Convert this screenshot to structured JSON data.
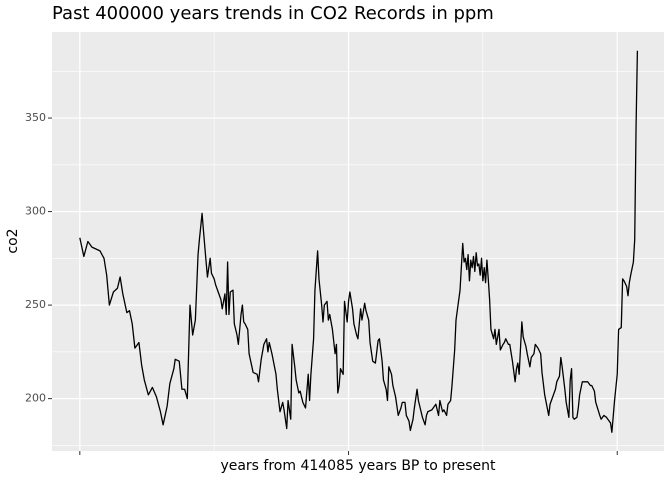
{
  "chart_data": {
    "type": "line",
    "title": "Past 400000 years trends in CO2 Records in ppm",
    "x_label": "years from 414085 years BP to present",
    "y_label": "co2",
    "color": "#000000",
    "grid": true,
    "x": [
      0,
      3,
      6,
      9,
      12,
      15,
      18,
      20,
      22,
      25,
      28,
      30,
      32,
      35,
      37,
      39,
      41,
      44,
      46,
      48,
      51,
      54,
      57,
      60,
      62,
      65,
      67,
      70,
      71,
      74,
      76,
      78,
      80,
      82,
      84,
      86,
      88,
      89,
      91,
      92,
      94,
      95,
      97,
      98,
      100,
      101,
      103,
      105,
      106,
      108,
      109,
      110,
      111,
      112,
      114,
      115,
      117,
      118,
      120,
      121,
      122,
      123,
      125,
      126,
      129,
      132,
      133,
      135,
      137,
      139,
      140,
      141,
      143,
      146,
      147,
      149,
      151,
      152,
      154,
      155,
      157,
      158,
      160,
      161,
      163,
      164,
      166,
      168,
      170,
      171,
      172,
      174,
      175,
      177,
      178,
      180,
      181,
      182,
      184,
      185,
      186,
      188,
      190,
      191,
      192,
      193,
      194,
      196,
      197,
      199,
      200,
      201,
      203,
      204,
      206,
      207,
      209,
      210,
      212,
      213,
      215,
      216,
      218,
      220,
      222,
      223,
      225,
      226,
      228,
      229,
      230,
      232,
      233,
      235,
      237,
      239,
      240,
      242,
      243,
      245,
      246,
      248,
      249,
      251,
      252,
      254,
      255,
      257,
      258,
      259,
      262,
      265,
      267,
      268,
      270,
      271,
      273,
      274,
      276,
      277,
      279,
      280,
      283,
      285,
      286,
      287,
      288,
      289,
      290,
      291,
      292,
      293,
      294,
      295,
      296,
      297,
      298,
      299,
      300,
      301,
      302,
      303,
      304,
      305,
      306,
      308,
      309,
      310,
      312,
      313,
      315,
      316,
      317,
      319,
      320,
      322,
      324,
      325,
      326,
      327,
      329,
      330,
      332,
      333,
      335,
      336,
      338,
      339,
      341,
      343,
      344,
      346,
      349,
      350,
      352,
      354,
      355,
      357,
      358,
      359,
      361,
      362,
      364,
      365,
      366,
      367,
      368,
      370,
      371,
      372,
      374,
      378,
      380,
      381,
      383,
      384,
      387,
      388,
      390,
      392,
      393,
      395,
      396,
      398,
      400,
      401,
      403,
      404,
      405,
      407,
      408,
      409,
      410,
      412,
      413,
      414,
      415
    ],
    "values": [
      286,
      276,
      284,
      281,
      280,
      279,
      275,
      266,
      250,
      257,
      259,
      265,
      256,
      246,
      247,
      240,
      227,
      230,
      218,
      210,
      202,
      206,
      201,
      193,
      186,
      196,
      208,
      216,
      221,
      220,
      205,
      205,
      200,
      250,
      234,
      242,
      277,
      285,
      299,
      290,
      273,
      265,
      275,
      267,
      264,
      261,
      257,
      253,
      248,
      256,
      245,
      273,
      245,
      257,
      258,
      240,
      234,
      229,
      245,
      250,
      241,
      240,
      237,
      224,
      214,
      213,
      209,
      221,
      229,
      232,
      225,
      230,
      224,
      213,
      205,
      193,
      198,
      194,
      184,
      199,
      189,
      229,
      217,
      210,
      203,
      204,
      198,
      195,
      213,
      199,
      213,
      232,
      258,
      279,
      264,
      250,
      241,
      250,
      252,
      242,
      245,
      237,
      224,
      229,
      203,
      207,
      216,
      213,
      252,
      241,
      252,
      257,
      248,
      240,
      234,
      232,
      248,
      242,
      251,
      247,
      242,
      230,
      220,
      219,
      231,
      232,
      220,
      210,
      205,
      199,
      217,
      213,
      207,
      201,
      191,
      195,
      198,
      198,
      191,
      188,
      183,
      189,
      195,
      205,
      199,
      193,
      190,
      186,
      191,
      193,
      194,
      197,
      191,
      199,
      193,
      194,
      191,
      197,
      199,
      207,
      226,
      242,
      258,
      283,
      273,
      275,
      269,
      277,
      263,
      274,
      270,
      276,
      268,
      278,
      271,
      272,
      266,
      275,
      263,
      270,
      262,
      274,
      264,
      253,
      237,
      232,
      237,
      229,
      237,
      226,
      229,
      230,
      232,
      229,
      229,
      220,
      209,
      216,
      219,
      213,
      241,
      233,
      228,
      224,
      217,
      222,
      224,
      229,
      227,
      224,
      214,
      202,
      191,
      197,
      201,
      205,
      209,
      212,
      222,
      217,
      205,
      198,
      190,
      210,
      216,
      190,
      189,
      190,
      195,
      202,
      209,
      209,
      207,
      207,
      204,
      198,
      191,
      189,
      191,
      190,
      189,
      187,
      182,
      199,
      213,
      237,
      238,
      264,
      263,
      260,
      255,
      262,
      266,
      273,
      285,
      345,
      386
    ],
    "xlim": [
      -20.7,
      434.8
    ],
    "xticks": [
      0,
      200,
      400
    ],
    "ylim": [
      172,
      396
    ],
    "yticks": [
      200,
      250,
      300,
      350
    ]
  }
}
